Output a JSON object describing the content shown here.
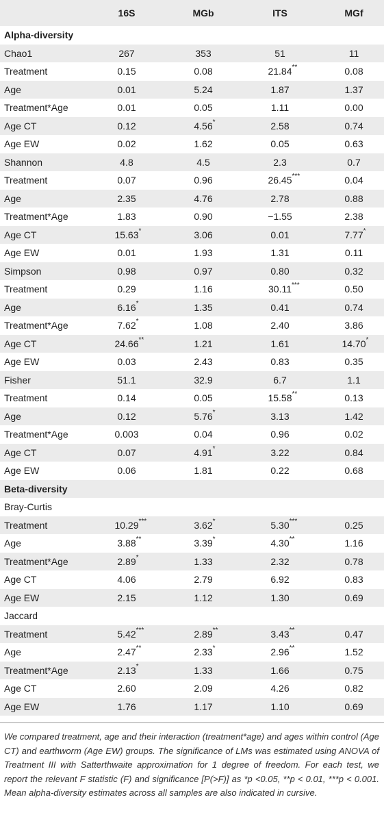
{
  "columns": [
    "16S",
    "MGb",
    "ITS",
    "MGf"
  ],
  "rows": [
    {
      "label": "Alpha-diversity",
      "type": "section",
      "cells": []
    },
    {
      "label": "Chao1",
      "type": "data",
      "cells": [
        [
          "267",
          ""
        ],
        [
          "353",
          ""
        ],
        [
          "51",
          ""
        ],
        [
          "11",
          ""
        ]
      ]
    },
    {
      "label": "Treatment",
      "type": "data",
      "cells": [
        [
          "0.15",
          ""
        ],
        [
          "0.08",
          ""
        ],
        [
          "21.84",
          "**"
        ],
        [
          "0.08",
          ""
        ]
      ]
    },
    {
      "label": "Age",
      "type": "data",
      "cells": [
        [
          "0.01",
          ""
        ],
        [
          "5.24",
          ""
        ],
        [
          "1.87",
          ""
        ],
        [
          "1.37",
          ""
        ]
      ]
    },
    {
      "label": "Treatment*Age",
      "type": "data",
      "cells": [
        [
          "0.01",
          ""
        ],
        [
          "0.05",
          ""
        ],
        [
          "1.11",
          ""
        ],
        [
          "0.00",
          ""
        ]
      ]
    },
    {
      "label": "Age CT",
      "type": "data",
      "cells": [
        [
          "0.12",
          ""
        ],
        [
          "4.56",
          "*"
        ],
        [
          "2.58",
          ""
        ],
        [
          "0.74",
          ""
        ]
      ]
    },
    {
      "label": "Age EW",
      "type": "data",
      "cells": [
        [
          "0.02",
          ""
        ],
        [
          "1.62",
          ""
        ],
        [
          "0.05",
          ""
        ],
        [
          "0.63",
          ""
        ]
      ]
    },
    {
      "label": "Shannon",
      "type": "data",
      "cells": [
        [
          "4.8",
          ""
        ],
        [
          "4.5",
          ""
        ],
        [
          "2.3",
          ""
        ],
        [
          "0.7",
          ""
        ]
      ]
    },
    {
      "label": "Treatment",
      "type": "data",
      "cells": [
        [
          "0.07",
          ""
        ],
        [
          "0.96",
          ""
        ],
        [
          "26.45",
          "***"
        ],
        [
          "0.04",
          ""
        ]
      ]
    },
    {
      "label": "Age",
      "type": "data",
      "cells": [
        [
          "2.35",
          ""
        ],
        [
          "4.76",
          ""
        ],
        [
          "2.78",
          ""
        ],
        [
          "0.88",
          ""
        ]
      ]
    },
    {
      "label": "Treatment*Age",
      "type": "data",
      "cells": [
        [
          "1.83",
          ""
        ],
        [
          "0.90",
          ""
        ],
        [
          "−1.55",
          ""
        ],
        [
          "2.38",
          ""
        ]
      ]
    },
    {
      "label": "Age CT",
      "type": "data",
      "cells": [
        [
          "15.63",
          "*"
        ],
        [
          "3.06",
          ""
        ],
        [
          "0.01",
          ""
        ],
        [
          "7.77",
          "*"
        ]
      ]
    },
    {
      "label": "Age EW",
      "type": "data",
      "cells": [
        [
          "0.01",
          ""
        ],
        [
          "1.93",
          ""
        ],
        [
          "1.31",
          ""
        ],
        [
          "0.11",
          ""
        ]
      ]
    },
    {
      "label": "Simpson",
      "type": "data",
      "cells": [
        [
          "0.98",
          ""
        ],
        [
          "0.97",
          ""
        ],
        [
          "0.80",
          ""
        ],
        [
          "0.32",
          ""
        ]
      ]
    },
    {
      "label": "Treatment",
      "type": "data",
      "cells": [
        [
          "0.29",
          ""
        ],
        [
          "1.16",
          ""
        ],
        [
          "30.11",
          "***"
        ],
        [
          "0.50",
          ""
        ]
      ]
    },
    {
      "label": "Age",
      "type": "data",
      "cells": [
        [
          "6.16",
          "*"
        ],
        [
          "1.35",
          ""
        ],
        [
          "0.41",
          ""
        ],
        [
          "0.74",
          ""
        ]
      ]
    },
    {
      "label": "Treatment*Age",
      "type": "data",
      "cells": [
        [
          "7.62",
          "*"
        ],
        [
          "1.08",
          ""
        ],
        [
          "2.40",
          ""
        ],
        [
          "3.86",
          ""
        ]
      ]
    },
    {
      "label": "Age CT",
      "type": "data",
      "cells": [
        [
          "24.66",
          "**"
        ],
        [
          "1.21",
          ""
        ],
        [
          "1.61",
          ""
        ],
        [
          "14.70",
          "*"
        ]
      ]
    },
    {
      "label": "Age EW",
      "type": "data",
      "cells": [
        [
          "0.03",
          ""
        ],
        [
          "2.43",
          ""
        ],
        [
          "0.83",
          ""
        ],
        [
          "0.35",
          ""
        ]
      ]
    },
    {
      "label": "Fisher",
      "type": "data",
      "cells": [
        [
          "51.1",
          ""
        ],
        [
          "32.9",
          ""
        ],
        [
          "6.7",
          ""
        ],
        [
          "1.1",
          ""
        ]
      ]
    },
    {
      "label": "Treatment",
      "type": "data",
      "cells": [
        [
          "0.14",
          ""
        ],
        [
          "0.05",
          ""
        ],
        [
          "15.58",
          "**"
        ],
        [
          "0.13",
          ""
        ]
      ]
    },
    {
      "label": "Age",
      "type": "data",
      "cells": [
        [
          "0.12",
          ""
        ],
        [
          "5.76",
          "*"
        ],
        [
          "3.13",
          ""
        ],
        [
          "1.42",
          ""
        ]
      ]
    },
    {
      "label": "Treatment*Age",
      "type": "data",
      "cells": [
        [
          "0.003",
          ""
        ],
        [
          "0.04",
          ""
        ],
        [
          "0.96",
          ""
        ],
        [
          "0.02",
          ""
        ]
      ]
    },
    {
      "label": "Age CT",
      "type": "data",
      "cells": [
        [
          "0.07",
          ""
        ],
        [
          "4.91",
          "*"
        ],
        [
          "3.22",
          ""
        ],
        [
          "0.84",
          ""
        ]
      ]
    },
    {
      "label": "Age EW",
      "type": "data",
      "cells": [
        [
          "0.06",
          ""
        ],
        [
          "1.81",
          ""
        ],
        [
          "0.22",
          ""
        ],
        [
          "0.68",
          ""
        ]
      ]
    },
    {
      "label": "Beta-diversity",
      "type": "section",
      "cells": []
    },
    {
      "label": "Bray-Curtis",
      "type": "data",
      "cells": []
    },
    {
      "label": "Treatment",
      "type": "data",
      "cells": [
        [
          "10.29",
          "***"
        ],
        [
          "3.62",
          "*"
        ],
        [
          "5.30",
          "***"
        ],
        [
          "0.25",
          ""
        ]
      ]
    },
    {
      "label": "Age",
      "type": "data",
      "cells": [
        [
          "3.88",
          "**"
        ],
        [
          "3.39",
          "*"
        ],
        [
          "4.30",
          "**"
        ],
        [
          "1.16",
          ""
        ]
      ]
    },
    {
      "label": "Treatment*Age",
      "type": "data",
      "cells": [
        [
          "2.89",
          "*"
        ],
        [
          "1.33",
          ""
        ],
        [
          "2.32",
          ""
        ],
        [
          "0.78",
          ""
        ]
      ]
    },
    {
      "label": "Age CT",
      "type": "data",
      "cells": [
        [
          "4.06",
          ""
        ],
        [
          "2.79",
          ""
        ],
        [
          "6.92",
          ""
        ],
        [
          "0.83",
          ""
        ]
      ]
    },
    {
      "label": "Age EW",
      "type": "data",
      "cells": [
        [
          "2.15",
          ""
        ],
        [
          "1.12",
          ""
        ],
        [
          "1.30",
          ""
        ],
        [
          "0.69",
          ""
        ]
      ]
    },
    {
      "label": "Jaccard",
      "type": "data",
      "cells": []
    },
    {
      "label": "Treatment",
      "type": "data",
      "cells": [
        [
          "5.42",
          "***"
        ],
        [
          "2.89",
          "**"
        ],
        [
          "3.43",
          "**"
        ],
        [
          "0.47",
          ""
        ]
      ]
    },
    {
      "label": "Age",
      "type": "data",
      "cells": [
        [
          "2.47",
          "**"
        ],
        [
          "2.33",
          "*"
        ],
        [
          "2.96",
          "**"
        ],
        [
          "1.52",
          ""
        ]
      ]
    },
    {
      "label": "Treatment*Age",
      "type": "data",
      "cells": [
        [
          "2.13",
          "*"
        ],
        [
          "1.33",
          ""
        ],
        [
          "1.66",
          ""
        ],
        [
          "0.75",
          ""
        ]
      ]
    },
    {
      "label": "Age CT",
      "type": "data",
      "cells": [
        [
          "2.60",
          ""
        ],
        [
          "2.09",
          ""
        ],
        [
          "4.26",
          ""
        ],
        [
          "0.82",
          ""
        ]
      ]
    },
    {
      "label": "Age EW",
      "type": "data",
      "cells": [
        [
          "1.76",
          ""
        ],
        [
          "1.17",
          ""
        ],
        [
          "1.10",
          ""
        ],
        [
          "0.69",
          ""
        ]
      ]
    }
  ],
  "footnote": "We compared treatment, age and their interaction (treatment*age) and ages within control (Age CT) and earthworm (Age EW) groups. The significance of LMs was estimated using ANOVA of Treatment III with Satterthwaite approximation for 1 degree of freedom. For each test, we report the relevant F statistic (F) and significance [P(>F)] as *p <0.05, **p < 0.01, ***p < 0.001. Mean alpha-diversity estimates across all samples are also indicated in cursive."
}
